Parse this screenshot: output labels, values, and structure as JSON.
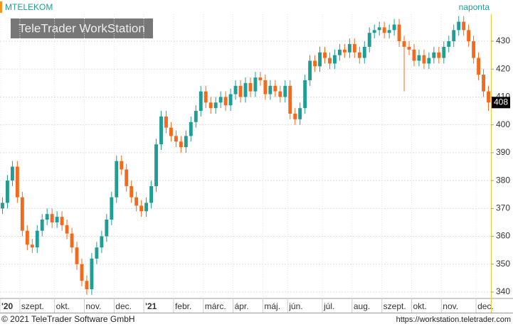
{
  "chart_data": {
    "type": "candlestick",
    "title": "MTELEKOM",
    "subtitle": "naponta",
    "watermark": "TeleTrader WorkStation",
    "footer_left": "© 2021 TeleTrader Software GmbH",
    "footer_right": "https://workstation.teletrader.com",
    "categories": [
      "'20",
      null,
      null,
      null,
      "szept.",
      null,
      null,
      null,
      null,
      null,
      null,
      "okt.",
      null,
      null,
      null,
      null,
      null,
      "nov.",
      null,
      null,
      null,
      null,
      null,
      "dec.",
      null,
      null,
      null,
      null,
      null,
      "'21",
      null,
      null,
      null,
      null,
      null,
      "febr.",
      null,
      null,
      null,
      null,
      null,
      "márc.",
      null,
      null,
      null,
      null,
      null,
      "ápr.",
      null,
      null,
      null,
      null,
      null,
      "máj.",
      null,
      null,
      null,
      null,
      "jún.",
      null,
      null,
      null,
      null,
      null,
      null,
      "júl.",
      null,
      null,
      null,
      null,
      null,
      "aug.",
      null,
      null,
      null,
      null,
      null,
      "szept.",
      null,
      null,
      null,
      null,
      null,
      "okt.",
      null,
      null,
      null,
      null,
      null,
      "nov.",
      null,
      null,
      null,
      null,
      null,
      null,
      "dec.",
      null,
      null
    ],
    "series": [
      {
        "name": "MTELEKOM",
        "up_color": "#1e9e94",
        "down_color": "#f26a1b",
        "open": [
          370,
          372,
          380,
          385,
          374,
          362,
          357,
          356,
          362,
          366,
          368,
          365,
          367,
          364,
          361,
          356,
          350,
          344,
          341,
          352,
          356,
          360,
          366,
          374,
          387,
          384,
          378,
          374,
          371,
          369,
          372,
          378,
          393,
          403,
          399,
          396,
          394,
          392,
          396,
          401,
          405,
          412,
          408,
          406,
          408,
          410,
          407,
          411,
          414,
          410,
          415,
          412,
          417,
          416,
          411,
          414,
          412,
          410,
          414,
          404,
          402,
          406,
          416,
          423,
          421,
          426,
          424,
          422,
          425,
          427,
          426,
          429,
          426,
          424,
          428,
          433,
          434,
          435,
          433,
          434,
          436,
          430,
          428,
          427,
          423,
          425,
          422,
          424,
          426,
          424,
          428,
          430,
          434,
          437,
          434,
          430,
          424,
          418,
          412
        ],
        "high": [
          374,
          382,
          387,
          387,
          376,
          364,
          359,
          364,
          368,
          370,
          370,
          369,
          369,
          366,
          363,
          358,
          352,
          346,
          354,
          358,
          362,
          368,
          376,
          389,
          389,
          386,
          380,
          376,
          373,
          374,
          380,
          395,
          405,
          405,
          401,
          398,
          396,
          398,
          403,
          407,
          414,
          414,
          410,
          410,
          412,
          412,
          413,
          416,
          416,
          417,
          417,
          419,
          419,
          418,
          416,
          416,
          414,
          416,
          416,
          406,
          408,
          418,
          425,
          425,
          428,
          428,
          426,
          427,
          429,
          429,
          431,
          431,
          428,
          430,
          435,
          436,
          437,
          437,
          436,
          438,
          438,
          432,
          430,
          429,
          427,
          427,
          426,
          428,
          428,
          430,
          432,
          436,
          439,
          439,
          436,
          432,
          426,
          420,
          414
        ],
        "low": [
          368,
          370,
          378,
          372,
          360,
          355,
          354,
          354,
          360,
          364,
          363,
          363,
          362,
          359,
          354,
          348,
          342,
          339,
          339,
          350,
          354,
          358,
          364,
          372,
          382,
          376,
          372,
          369,
          367,
          367,
          370,
          376,
          391,
          397,
          394,
          392,
          390,
          390,
          394,
          399,
          403,
          406,
          404,
          404,
          406,
          405,
          405,
          409,
          408,
          408,
          410,
          410,
          414,
          409,
          409,
          410,
          408,
          408,
          402,
          400,
          400,
          404,
          414,
          419,
          419,
          422,
          420,
          420,
          423,
          424,
          424,
          424,
          422,
          422,
          426,
          431,
          432,
          431,
          431,
          432,
          428,
          412,
          425,
          421,
          421,
          420,
          420,
          422,
          422,
          422,
          426,
          428,
          432,
          432,
          428,
          422,
          416,
          410,
          405
        ],
        "close": [
          372,
          380,
          385,
          374,
          362,
          357,
          356,
          362,
          366,
          368,
          365,
          367,
          364,
          361,
          356,
          350,
          344,
          341,
          352,
          356,
          360,
          366,
          374,
          387,
          384,
          378,
          374,
          371,
          369,
          372,
          378,
          393,
          403,
          399,
          396,
          394,
          392,
          396,
          401,
          405,
          412,
          408,
          406,
          408,
          410,
          407,
          411,
          414,
          410,
          415,
          412,
          417,
          416,
          411,
          414,
          412,
          410,
          414,
          404,
          402,
          406,
          416,
          423,
          421,
          426,
          424,
          422,
          425,
          427,
          426,
          429,
          426,
          424,
          428,
          433,
          434,
          435,
          433,
          434,
          436,
          430,
          428,
          427,
          423,
          425,
          422,
          424,
          426,
          424,
          428,
          430,
          434,
          437,
          434,
          430,
          424,
          418,
          412,
          408
        ]
      }
    ],
    "ylim": [
      337.7,
      439.7
    ],
    "yticks": [
      340,
      350,
      360,
      370,
      380,
      390,
      400,
      410,
      420,
      430
    ],
    "grid": true
  }
}
